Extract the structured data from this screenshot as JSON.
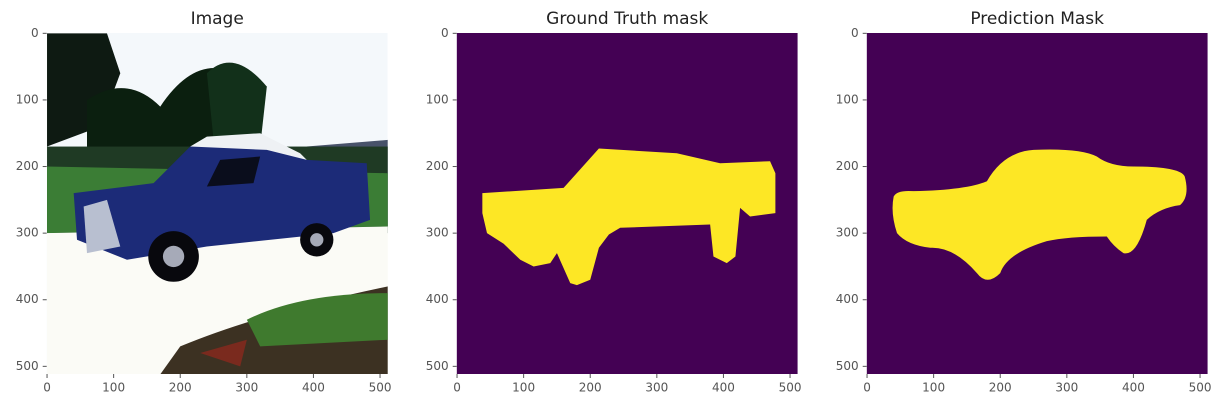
{
  "chart_data": [
    {
      "type": "image",
      "title": "Image",
      "xlim": [
        -0.5,
        511.5
      ],
      "ylim": [
        511.5,
        -0.5
      ],
      "xticks": [
        0,
        100,
        200,
        300,
        400,
        500
      ],
      "yticks": [
        0,
        100,
        200,
        300,
        400,
        500
      ]
    },
    {
      "type": "image",
      "title": "Ground Truth mask",
      "xlim": [
        -0.5,
        511.5
      ],
      "ylim": [
        511.5,
        -0.5
      ],
      "xticks": [
        0,
        100,
        200,
        300,
        400,
        500
      ],
      "yticks": [
        0,
        100,
        200,
        300,
        400,
        500
      ]
    },
    {
      "type": "image",
      "title": "Prediction Mask",
      "xlim": [
        -0.5,
        511.5
      ],
      "ylim": [
        511.5,
        -0.5
      ],
      "xticks": [
        0,
        100,
        200,
        300,
        400,
        500
      ],
      "yticks": [
        0,
        100,
        200,
        300,
        400,
        500
      ]
    }
  ]
}
